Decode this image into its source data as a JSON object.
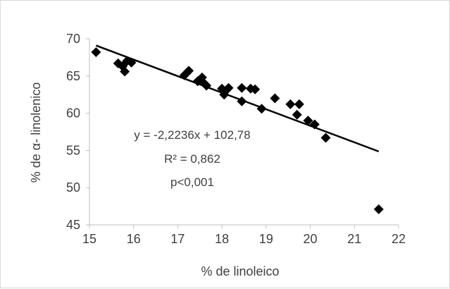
{
  "chart_data": {
    "type": "scatter",
    "title": "",
    "xlabel": "% de linoleico",
    "ylabel": "% de α- linolenico",
    "xlim": [
      15,
      22
    ],
    "ylim": [
      45,
      70
    ],
    "x_ticks": [
      15,
      16,
      17,
      18,
      19,
      20,
      21,
      22
    ],
    "y_ticks": [
      45,
      50,
      55,
      60,
      65,
      70
    ],
    "grid": false,
    "legend": "none",
    "marker_color": "#000000",
    "series": [
      {
        "marker": "diamond",
        "points": [
          [
            15.15,
            68.2
          ],
          [
            15.65,
            66.7
          ],
          [
            15.75,
            66.3
          ],
          [
            15.8,
            65.6
          ],
          [
            15.85,
            67.0
          ],
          [
            15.95,
            66.8
          ],
          [
            17.15,
            65.1
          ],
          [
            17.2,
            65.4
          ],
          [
            17.25,
            65.7
          ],
          [
            17.45,
            64.3
          ],
          [
            17.55,
            64.8
          ],
          [
            17.6,
            64.0
          ],
          [
            17.65,
            63.7
          ],
          [
            18.0,
            63.3
          ],
          [
            18.05,
            62.5
          ],
          [
            18.1,
            63.1
          ],
          [
            18.15,
            63.4
          ],
          [
            18.45,
            63.4
          ],
          [
            18.45,
            61.6
          ],
          [
            18.65,
            63.3
          ],
          [
            18.75,
            63.2
          ],
          [
            18.9,
            60.6
          ],
          [
            19.2,
            62.0
          ],
          [
            19.55,
            61.2
          ],
          [
            19.7,
            59.8
          ],
          [
            19.75,
            61.2
          ],
          [
            19.95,
            59.0
          ],
          [
            20.1,
            58.5
          ],
          [
            20.35,
            56.7
          ],
          [
            21.55,
            47.1
          ]
        ]
      }
    ],
    "trendline": {
      "slope": -2.2236,
      "intercept": 102.78,
      "x_range": [
        15.15,
        21.55
      ],
      "color": "#000000"
    },
    "annotations": [
      "y = -2,2236x + 102,78",
      "R² = 0,862",
      "p<0,001"
    ]
  }
}
